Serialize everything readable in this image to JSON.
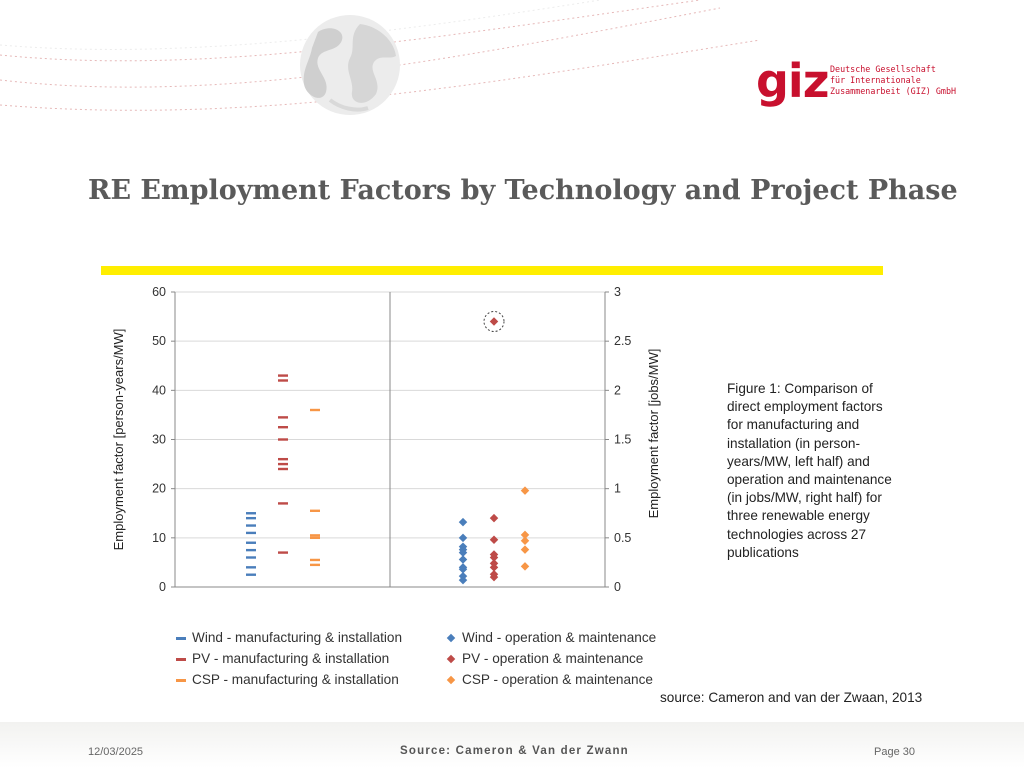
{
  "slide": {
    "title": "RE Employment Factors by Technology and Project Phase",
    "logo": {
      "mark": "giz",
      "text": "Deutsche Gesellschaft\nfür Internationale\nZusammenarbeit (GIZ) GmbH"
    },
    "caption_lines": [
      "Figure 1: Comparison of",
      "direct employment factors",
      "for manufacturing and",
      "installation (in person-",
      "years/MW, left half) and",
      "operation and maintenance",
      "(in jobs/MW, right half) for",
      "three renewable energy",
      "technologies across 27",
      "publications"
    ],
    "chart_source": "source: Cameron and van der Zwaan, 2013",
    "footer": {
      "date": "12/03/2025",
      "source": "Source: Cameron & Van der Zwann",
      "page": "Page 30"
    },
    "colors": {
      "wind": "#4a7ebb",
      "pv": "#be4b48",
      "csp": "#f79646",
      "title": "#5a5a5a",
      "highlight_bar": "#ffee00",
      "logo": "#c8102e"
    }
  },
  "chart_data": {
    "type": "scatter",
    "title": "",
    "left_axis": {
      "label": "Employment factor [person-years/MW]",
      "ylim": [
        0,
        60
      ],
      "ticks": [
        "0",
        "10",
        "20",
        "30",
        "40",
        "50",
        "60"
      ]
    },
    "right_axis": {
      "label": "Employment factor [jobs/MW]",
      "ylim": [
        0,
        3
      ],
      "ticks": [
        "0",
        "0.5",
        "1",
        "1.5",
        "2",
        "2.5",
        "3"
      ]
    },
    "grid": true,
    "legend_position": "bottom",
    "series": [
      {
        "name": "Wind - manufacturing & installation",
        "axis": "left",
        "marker": "dash",
        "color": "#4a7ebb",
        "values": [
          2.5,
          4,
          6,
          7.5,
          9,
          11,
          12.5,
          14,
          15
        ]
      },
      {
        "name": "PV - manufacturing & installation",
        "axis": "left",
        "marker": "dash",
        "color": "#be4b48",
        "values": [
          7,
          17,
          24,
          25,
          26,
          30,
          32.5,
          34.5,
          42,
          43
        ]
      },
      {
        "name": "CSP - manufacturing & installation",
        "axis": "left",
        "marker": "dash",
        "color": "#f79646",
        "values": [
          4.5,
          5.5,
          10,
          10.5,
          15.5,
          36
        ]
      },
      {
        "name": "Wind - operation & maintenance",
        "axis": "right",
        "marker": "diamond",
        "color": "#4a7ebb",
        "values": [
          0.07,
          0.11,
          0.18,
          0.2,
          0.28,
          0.35,
          0.38,
          0.41,
          0.5,
          0.66
        ]
      },
      {
        "name": "PV - operation & maintenance",
        "axis": "right",
        "marker": "diamond",
        "color": "#be4b48",
        "values": [
          0.1,
          0.13,
          0.2,
          0.24,
          0.3,
          0.33,
          0.48,
          0.7,
          2.7
        ]
      },
      {
        "name": "CSP - operation & maintenance",
        "axis": "right",
        "marker": "diamond",
        "color": "#f79646",
        "values": [
          0.21,
          0.38,
          0.47,
          0.53,
          0.98
        ]
      }
    ],
    "annotations": [
      {
        "type": "circle",
        "series": "PV - operation & maintenance",
        "value": 2.7
      }
    ]
  }
}
